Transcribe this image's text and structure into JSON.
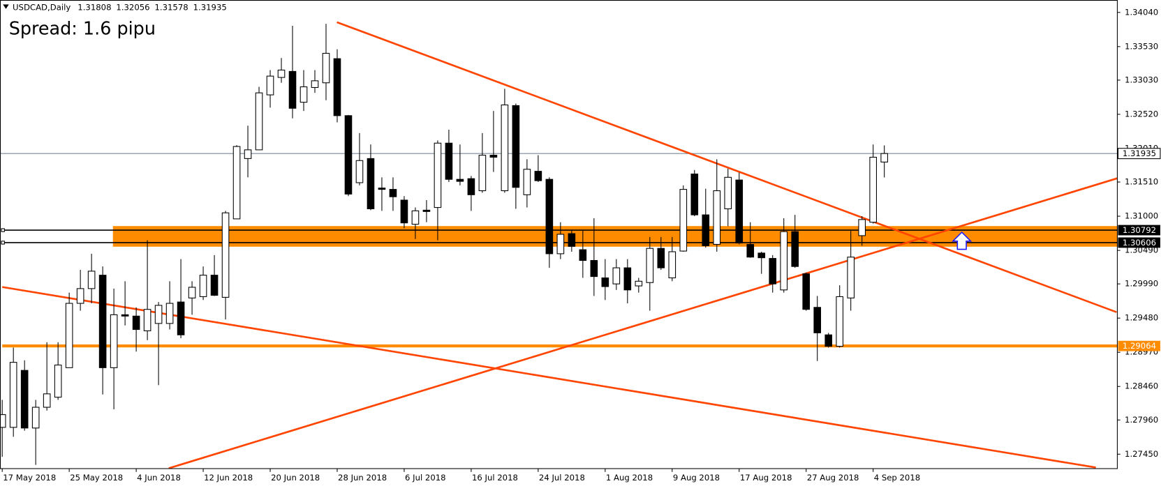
{
  "chart_data": {
    "type": "candlestick",
    "symbol": "USDCAD,Daily",
    "annotation": "Spread: 1.6 pipu",
    "categories": [
      "17 May 2018",
      null,
      null,
      null,
      null,
      null,
      "25 May 2018",
      null,
      null,
      null,
      null,
      null,
      "4 Jun 2018",
      null,
      null,
      null,
      null,
      null,
      "12 Jun 2018",
      null,
      null,
      null,
      null,
      null,
      "20 Jun 2018",
      null,
      null,
      null,
      null,
      null,
      "28 Jun 2018",
      null,
      null,
      null,
      null,
      null,
      "6 Jul 2018",
      null,
      null,
      null,
      null,
      null,
      "16 Jul 2018",
      null,
      null,
      null,
      null,
      null,
      "24 Jul 2018",
      null,
      null,
      null,
      null,
      null,
      "1 Aug 2018",
      null,
      null,
      null,
      null,
      null,
      "9 Aug 2018",
      null,
      null,
      null,
      null,
      null,
      "17 Aug 2018",
      null,
      null,
      null,
      null,
      null,
      "27 Aug 2018",
      null,
      null,
      null,
      null,
      null,
      "4 Sep 2018",
      null
    ],
    "open": [
      1.2785,
      1.2785,
      1.287,
      1.2784,
      1.2815,
      1.283,
      1.2874,
      1.297,
      1.2992,
      1.3012,
      1.2874,
      1.2953,
      1.2951,
      1.2929,
      1.294,
      1.294,
      1.2972,
      1.2978,
      1.298,
      1.3012,
      1.2979,
      1.3096,
      1.3186,
      1.3199,
      1.3281,
      1.3307,
      1.3316,
      1.327,
      1.3292,
      1.3299,
      1.3335,
      1.325,
      1.315,
      1.3186,
      1.3142,
      1.314,
      1.3124,
      1.3088,
      1.3109,
      1.3113,
      1.3209,
      1.3155,
      1.3156,
      1.3138,
      1.3191,
      1.3138,
      1.3265,
      1.3132,
      1.3167,
      1.3155,
      1.3044,
      1.3074,
      1.305,
      1.3034,
      1.3008,
      1.2999,
      1.3023,
      1.2996,
      1.3001,
      1.3052,
      1.3008,
      1.3048,
      1.3163,
      1.3102,
      1.3058,
      1.3111,
      1.3154,
      1.3058,
      1.3045,
      1.3037,
      1.299,
      1.3077,
      1.3014,
      1.2964,
      1.2923,
      1.2906,
      1.2978,
      1.3071,
      1.3091,
      1.31808
    ],
    "high": [
      1.2826,
      1.2904,
      1.2885,
      1.2826,
      1.2912,
      1.2912,
      1.2986,
      1.302,
      1.3044,
      1.3025,
      1.2992,
      1.3003,
      1.2964,
      1.3064,
      1.2972,
      1.3003,
      1.3036,
      1.3003,
      1.3025,
      1.3042,
      1.3108,
      1.3206,
      1.3235,
      1.3293,
      1.3318,
      1.3336,
      1.3384,
      1.3318,
      1.3318,
      1.3387,
      1.3349,
      1.3251,
      1.3224,
      1.3207,
      1.3158,
      1.3158,
      1.313,
      1.3113,
      1.3124,
      1.3213,
      1.3229,
      1.3207,
      1.316,
      1.3224,
      1.3257,
      1.329,
      1.3268,
      1.3185,
      1.3191,
      1.3158,
      1.3091,
      1.308,
      1.308,
      1.3097,
      1.3036,
      1.3036,
      1.3036,
      1.3008,
      1.3069,
      1.3069,
      1.3069,
      1.3146,
      1.3169,
      1.3141,
      1.3185,
      1.3171,
      1.3165,
      1.3091,
      1.3047,
      1.3042,
      1.3097,
      1.3102,
      1.3016,
      1.2981,
      1.2926,
      1.2997,
      1.308,
      1.31,
      1.3207,
      1.32056
    ],
    "low": [
      1.2741,
      1.2771,
      1.278,
      1.2729,
      1.281,
      1.2826,
      1.2874,
      1.2959,
      1.297,
      1.2834,
      1.2812,
      1.2937,
      1.2898,
      1.2915,
      1.2848,
      1.2931,
      1.2918,
      1.2953,
      1.2975,
      1.2981,
      1.2946,
      1.3096,
      1.3158,
      1.3199,
      1.3262,
      1.3299,
      1.3246,
      1.3257,
      1.3284,
      1.3273,
      1.324,
      1.313,
      1.3146,
      1.3109,
      1.3108,
      1.3108,
      1.3082,
      1.3066,
      1.3091,
      1.3064,
      1.3151,
      1.3146,
      1.3108,
      1.3135,
      1.3166,
      1.3135,
      1.3111,
      1.3113,
      1.3151,
      1.3023,
      1.3036,
      1.3047,
      1.3008,
      1.2981,
      1.2975,
      1.299,
      1.297,
      1.2986,
      1.2959,
      1.302,
      1.3003,
      1.3047,
      1.31,
      1.3053,
      1.3047,
      1.3085,
      1.3058,
      1.3038,
      1.3014,
      1.2986,
      1.2986,
      1.3023,
      1.2959,
      1.2884,
      1.2904,
      1.2904,
      1.2959,
      1.3056,
      1.3089,
      1.31578
    ],
    "close": [
      1.2804,
      1.2882,
      1.2784,
      1.2815,
      1.2835,
      1.2878,
      1.297,
      1.2992,
      1.3018,
      1.2874,
      1.2953,
      1.2951,
      1.2931,
      1.2961,
      1.2967,
      1.297,
      1.2923,
      1.2994,
      1.3012,
      1.2982,
      1.3105,
      1.3204,
      1.3199,
      1.3284,
      1.3309,
      1.3318,
      1.3261,
      1.3293,
      1.3302,
      1.3343,
      1.325,
      1.3133,
      1.3183,
      1.3111,
      1.314,
      1.3129,
      1.309,
      1.3108,
      1.3107,
      1.3209,
      1.3155,
      1.3152,
      1.3132,
      1.3191,
      1.3188,
      1.3266,
      1.3143,
      1.317,
      1.3153,
      1.3044,
      1.3073,
      1.3055,
      1.3034,
      1.301,
      1.2995,
      1.3023,
      1.299,
      1.3003,
      1.3052,
      1.3023,
      1.3047,
      1.314,
      1.3102,
      1.3056,
      1.3138,
      1.3158,
      1.306,
      1.3039,
      1.3038,
      1.2999,
      1.3077,
      1.3025,
      1.2961,
      1.2926,
      1.2906,
      1.298,
      1.3039,
      1.3095,
      1.3188,
      1.31935
    ],
    "up_color": "#ffffff",
    "down_color": "#000000",
    "price_line_color": "#778899",
    "zone_color": "#ff8c00",
    "levels": [
      {
        "value": 1.30792,
        "color": "#000000"
      },
      {
        "value": 1.30606,
        "color": "#000000"
      },
      {
        "value": 1.29064,
        "color": "#ff8c00"
      }
    ],
    "ylim": [
      1.2724,
      1.3417
    ],
    "yticks": [
      {
        "value": 1.3404,
        "label": "1.34040"
      },
      {
        "value": 1.3353,
        "label": "1.33530"
      },
      {
        "value": 1.3303,
        "label": "1.33030"
      },
      {
        "value": 1.3252,
        "label": "1.32520"
      },
      {
        "value": 1.3201,
        "label": "1.32010"
      },
      {
        "value": 1.3151,
        "label": "1.31510"
      },
      {
        "value": 1.31,
        "label": "1.31000"
      },
      {
        "value": 1.3049,
        "label": "1.30490"
      },
      {
        "value": 1.2999,
        "label": "1.29990"
      },
      {
        "value": 1.2948,
        "label": "1.29480"
      },
      {
        "value": 1.2897,
        "label": "1.28970"
      },
      {
        "value": 1.2846,
        "label": "1.28460"
      },
      {
        "value": 1.2796,
        "label": "1.27960"
      },
      {
        "value": 1.2745,
        "label": "1.27450"
      }
    ]
  }
}
